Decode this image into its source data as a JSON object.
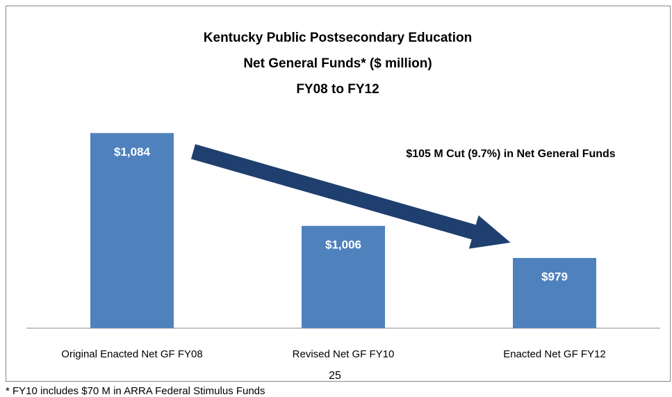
{
  "chart_data": {
    "type": "bar",
    "title": [
      "Kentucky Public Postsecondary Education",
      "Net General Funds* ($ million)",
      "FY08 to FY12"
    ],
    "categories": [
      "Original Enacted Net GF FY08",
      "Revised Net GF FY10",
      "Enacted Net GF FY12"
    ],
    "values": [
      1084,
      1006,
      979
    ],
    "value_labels": [
      "$1,084",
      "$1,006",
      "$979"
    ],
    "color": "#4f81bd",
    "ylim": [
      920,
      1100
    ],
    "annotation": "$105 M Cut (9.7%) in Net General Funds",
    "page_number": "25",
    "footnote": "* FY10 includes $70 M in ARRA Federal Stimulus Funds"
  }
}
